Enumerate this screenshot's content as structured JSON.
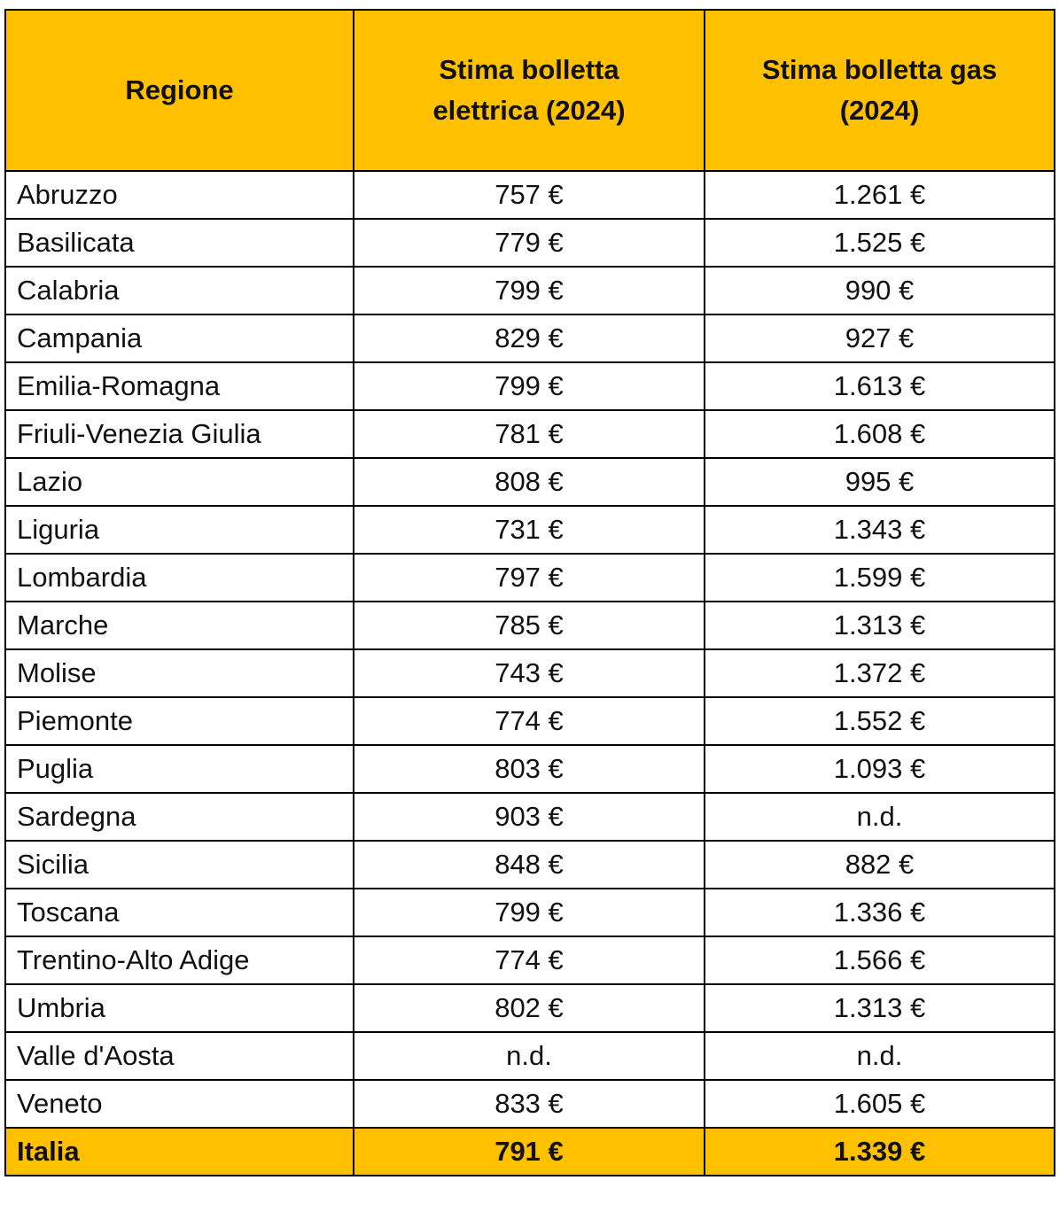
{
  "table": {
    "header": [
      "Regione",
      "Stima bolletta elettrica (2024)",
      "Stima bolletta gas (2024)"
    ],
    "rows": [
      [
        "Abruzzo",
        "757 €",
        "1.261 €"
      ],
      [
        "Basilicata",
        "779 €",
        "1.525 €"
      ],
      [
        "Calabria",
        "799 €",
        "990 €"
      ],
      [
        "Campania",
        "829 €",
        "927 €"
      ],
      [
        "Emilia-Romagna",
        "799 €",
        "1.613 €"
      ],
      [
        "Friuli-Venezia Giulia",
        "781 €",
        "1.608 €"
      ],
      [
        "Lazio",
        "808 €",
        "995 €"
      ],
      [
        "Liguria",
        "731 €",
        "1.343 €"
      ],
      [
        "Lombardia",
        "797 €",
        "1.599 €"
      ],
      [
        "Marche",
        "785 €",
        "1.313 €"
      ],
      [
        "Molise",
        "743 €",
        "1.372 €"
      ],
      [
        "Piemonte",
        "774 €",
        "1.552 €"
      ],
      [
        "Puglia",
        "803 €",
        "1.093 €"
      ],
      [
        "Sardegna",
        "903 €",
        "n.d."
      ],
      [
        "Sicilia",
        "848 €",
        "882 €"
      ],
      [
        "Toscana",
        "799 €",
        "1.336 €"
      ],
      [
        "Trentino-Alto Adige",
        "774 €",
        "1.566 €"
      ],
      [
        "Umbria",
        "802 €",
        "1.313 €"
      ],
      [
        "Valle d'Aosta",
        "n.d.",
        "n.d."
      ],
      [
        "Veneto",
        "833 €",
        "1.605 €"
      ]
    ],
    "footer": [
      "Italia",
      "791 €",
      "1.339 €"
    ]
  }
}
